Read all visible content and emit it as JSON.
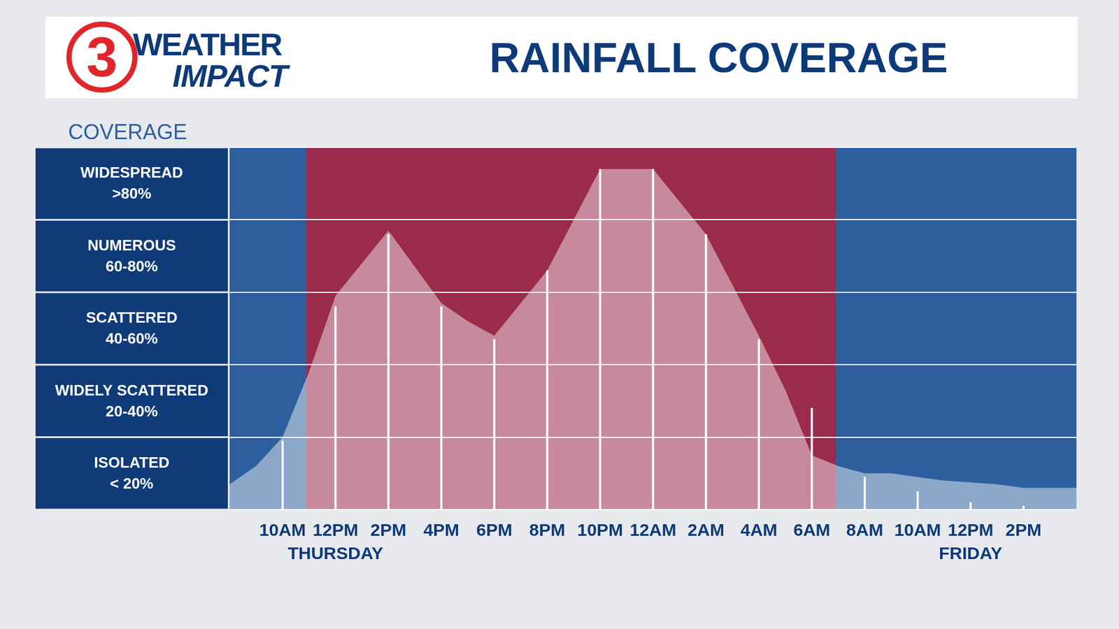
{
  "chart_data": {
    "type": "line",
    "title": "RAINFALL COVERAGE",
    "logo": {
      "number": "3",
      "line1": "WEATHER",
      "line2": "IMPACT"
    },
    "y_label": "COVERAGE",
    "categories": [
      null,
      null,
      "10AM",
      null,
      "12PM",
      null,
      "2PM",
      null,
      "4PM",
      null,
      "6PM",
      null,
      "8PM",
      null,
      "10PM",
      null,
      "12AM",
      null,
      "2AM",
      null,
      "4AM",
      null,
      "6AM",
      null,
      "8AM",
      null,
      "10AM",
      null,
      "12PM",
      null,
      "2PM",
      null,
      null
    ],
    "day_labels": [
      null,
      null,
      null,
      null,
      "THURSDAY",
      null,
      null,
      null,
      null,
      null,
      null,
      null,
      null,
      null,
      null,
      null,
      null,
      null,
      null,
      null,
      null,
      null,
      null,
      null,
      null,
      null,
      null,
      null,
      "FRIDAY",
      null,
      null,
      null,
      null
    ],
    "series": [
      {
        "type": "area",
        "color": "#ffffff",
        "values": [
          7,
          12,
          20,
          38,
          59,
          68,
          77,
          67,
          57,
          52,
          48,
          57,
          66,
          80,
          94,
          94,
          94,
          85,
          76,
          62,
          48,
          33,
          15,
          12,
          10,
          10,
          9,
          8,
          7.5,
          7,
          6,
          6,
          6
        ]
      },
      {
        "type": "bar",
        "color": "#ffffff",
        "values": [
          null,
          null,
          19,
          null,
          56,
          null,
          76,
          null,
          56,
          null,
          47,
          null,
          66,
          null,
          94,
          null,
          94,
          null,
          76,
          null,
          47,
          null,
          28,
          null,
          9,
          null,
          5,
          null,
          2,
          null,
          1,
          null,
          null
        ]
      }
    ],
    "bands": [
      {
        "name": "WIDESPREAD",
        "range_label": ">80%",
        "from": 80,
        "to": 100
      },
      {
        "name": "NUMEROUS",
        "range_label": "60-80%",
        "from": 60,
        "to": 80
      },
      {
        "name": "SCATTERED",
        "range_label": "40-60%",
        "from": 40,
        "to": 60
      },
      {
        "name": "WIDELY SCATTERED",
        "range_label": "20-40%",
        "from": 20,
        "to": 40
      },
      {
        "name": "ISOLATED",
        "range_label": "< 20%",
        "from": 0,
        "to": 20
      }
    ],
    "highlight_range": [
      2.9,
      22.9
    ],
    "ylim": [
      0,
      100
    ],
    "yticks": [
      0,
      20,
      40,
      60,
      80,
      100
    ],
    "grid": true,
    "tick_labels": "x"
  }
}
